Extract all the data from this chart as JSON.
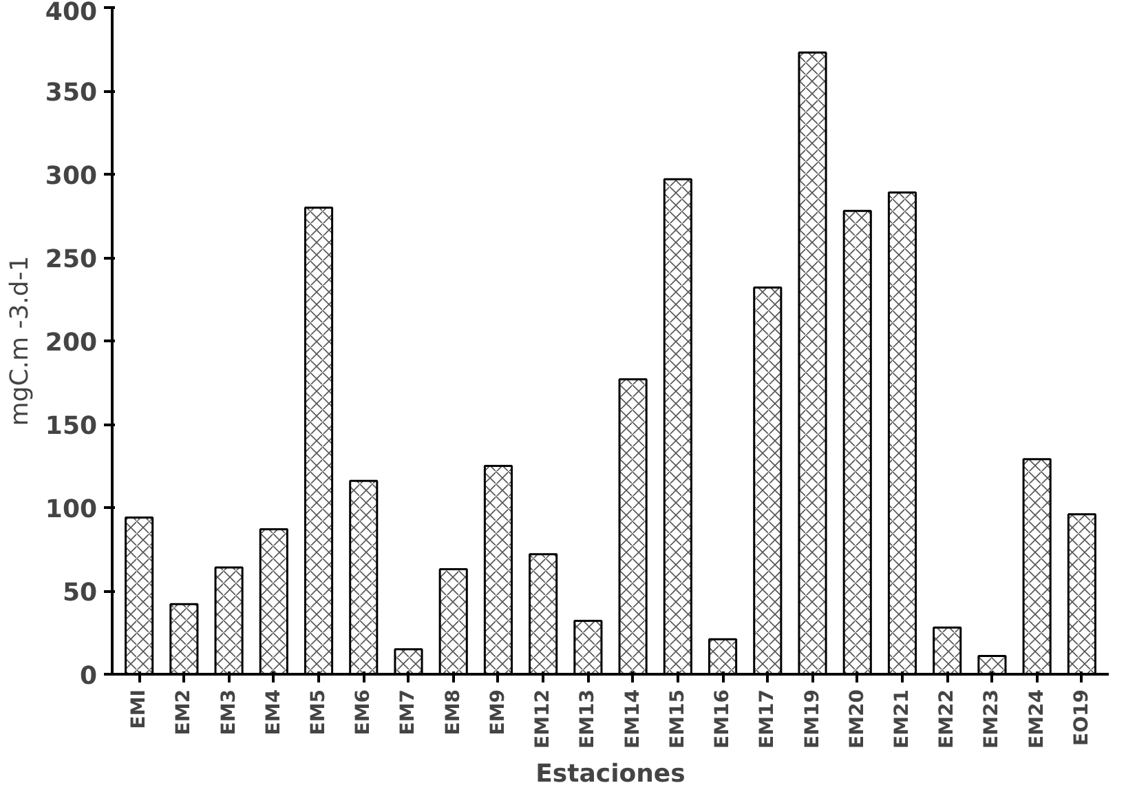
{
  "chart_data": {
    "type": "bar",
    "xlabel": "Estaciones",
    "ylabel": "mgC.m -3.d-1",
    "categories": [
      "EMI",
      "EM2",
      "EM3",
      "EM4",
      "EM5",
      "EM6",
      "EM7",
      "EM8",
      "EM9",
      "EM12",
      "EM13",
      "EM14",
      "EM15",
      "EM16",
      "EM17",
      "EM19",
      "EM20",
      "EM21",
      "EM22",
      "EM23",
      "EM24",
      "EO19"
    ],
    "values": [
      94,
      42,
      64,
      87,
      280,
      116,
      15,
      63,
      125,
      72,
      32,
      177,
      297,
      21,
      232,
      373,
      278,
      289,
      28,
      11,
      129,
      96
    ],
    "color": "#ffffff",
    "ylim": [
      0,
      400
    ],
    "yticks": [
      0,
      50,
      100,
      150,
      200,
      250,
      300,
      350,
      400
    ],
    "grid": false
  }
}
